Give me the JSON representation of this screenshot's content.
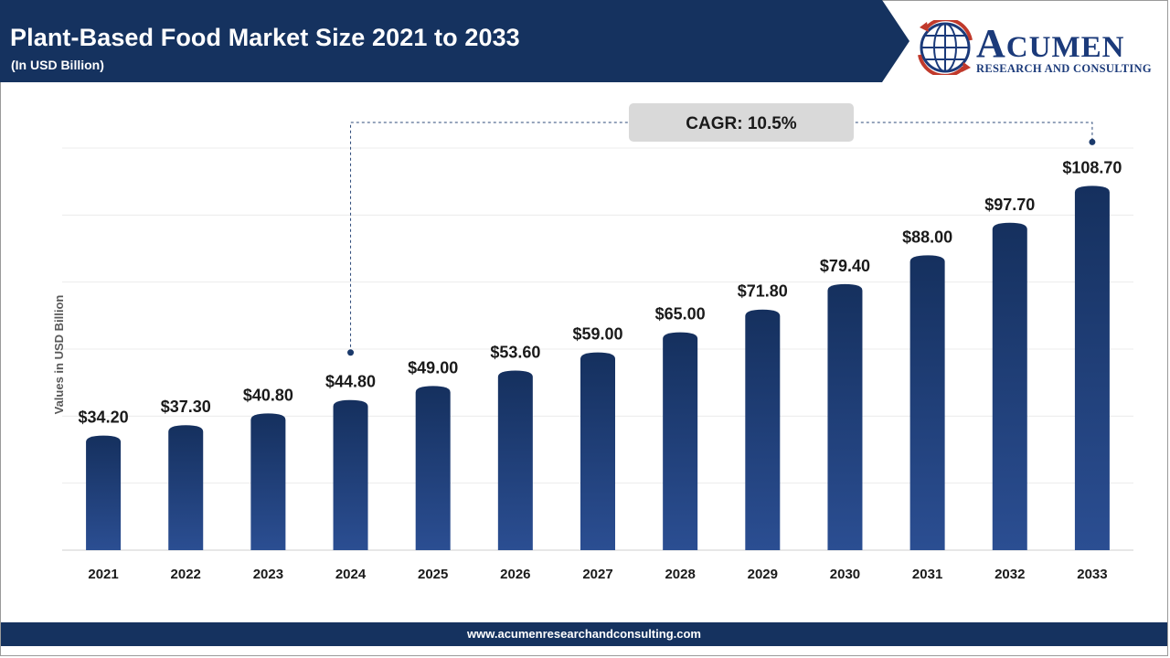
{
  "header": {
    "title": "Plant-Based Food Market Size 2021 to 2033",
    "subtitle": "(In USD Billion)",
    "banner_color": "#15325f"
  },
  "logo": {
    "name_initial": "A",
    "name_rest": "CUMEN",
    "tagline": "RESEARCH AND CONSULTING",
    "brand_color": "#1b3a7a",
    "accent_color": "#c0392b"
  },
  "footer": {
    "url": "www.acumenresearchandconsulting.com"
  },
  "chart_data": {
    "type": "bar",
    "title": "Plant-Based Food Market Size 2021 to 2033",
    "ylabel": "Values in USD Billion",
    "xlabel": "",
    "categories": [
      "2021",
      "2022",
      "2023",
      "2024",
      "2025",
      "2026",
      "2027",
      "2028",
      "2029",
      "2030",
      "2031",
      "2032",
      "2033"
    ],
    "values": [
      34.2,
      37.3,
      40.8,
      44.8,
      49.0,
      53.6,
      59.0,
      65.0,
      71.8,
      79.4,
      88.0,
      97.7,
      108.7
    ],
    "value_labels": [
      "$34.20",
      "$37.30",
      "$40.80",
      "$44.80",
      "$49.00",
      "$53.60",
      "$59.00",
      "$65.00",
      "$71.80",
      "$79.40",
      "$88.00",
      "$97.70",
      "$108.70"
    ],
    "ylim": [
      0,
      120
    ],
    "grid": true,
    "legend": "none",
    "bar_color_top": "#15305e",
    "bar_color_bottom": "#2b4e92",
    "annotation": {
      "text": "CAGR: 10.5%",
      "from_category": "2024",
      "to_category": "2033"
    }
  }
}
